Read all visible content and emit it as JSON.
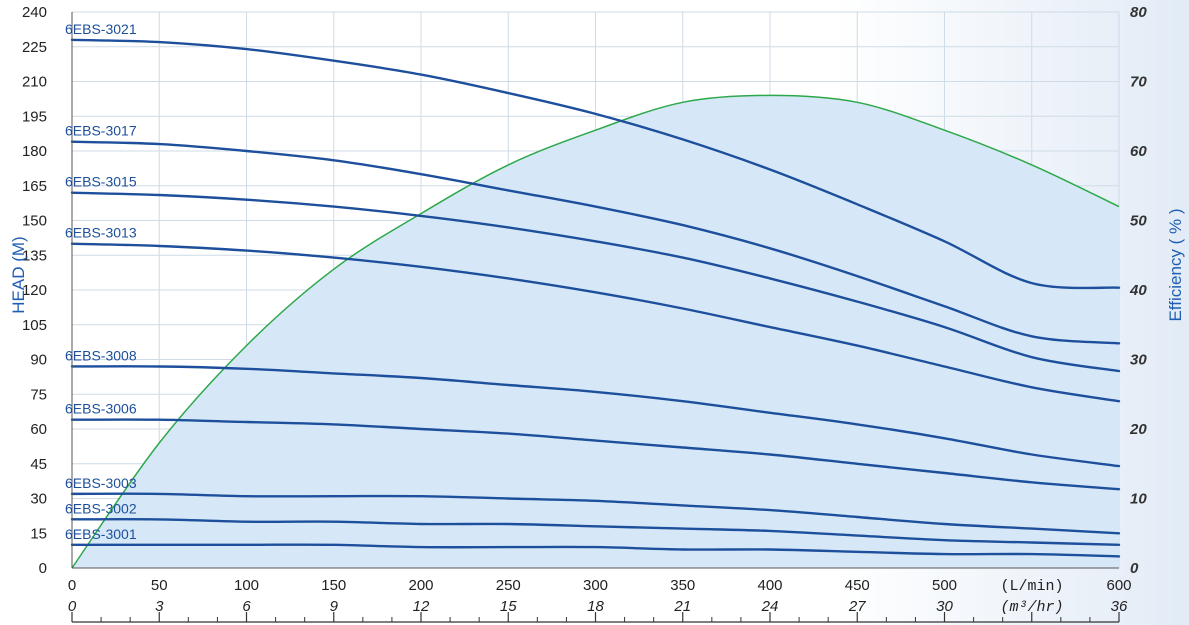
{
  "chart_data": {
    "type": "line",
    "ylabel": "HEAD (M)",
    "y2label": "Efficiency ( % )",
    "x_unit_primary": "(L/min)",
    "x_unit_secondary": "(m³/hr)",
    "xlim": [
      0,
      600
    ],
    "ylim": [
      0,
      240
    ],
    "y2lim": [
      0,
      80
    ],
    "grid": true,
    "x_ticks": [
      "0",
      "50",
      "100",
      "150",
      "200",
      "250",
      "300",
      "350",
      "400",
      "450",
      "500",
      "",
      "600"
    ],
    "x2_ticks": [
      "0",
      "3",
      "6",
      "9",
      "12",
      "15",
      "18",
      "21",
      "24",
      "27",
      "30",
      "",
      "36"
    ],
    "y_ticks": [
      "0",
      "15",
      "30",
      "45",
      "60",
      "75",
      "90",
      "105",
      "120",
      "135",
      "150",
      "165",
      "180",
      "195",
      "210",
      "225",
      "240"
    ],
    "y2_ticks": [
      "0",
      "10",
      "20",
      "30",
      "40",
      "50",
      "60",
      "70",
      "80"
    ],
    "x": [
      0,
      50,
      100,
      150,
      200,
      250,
      300,
      350,
      400,
      450,
      500,
      550,
      600
    ],
    "series": [
      {
        "name": "6EBS-3021",
        "values": [
          228,
          227,
          224,
          219,
          213,
          205,
          196,
          185,
          172,
          157,
          141,
          123,
          121
        ]
      },
      {
        "name": "6EBS-3017",
        "values": [
          184,
          183,
          180,
          176,
          170,
          163,
          156,
          148,
          138,
          126,
          113,
          100,
          97
        ]
      },
      {
        "name": "6EBS-3015",
        "values": [
          162,
          161,
          159,
          156,
          152,
          147,
          141,
          134,
          125,
          115,
          104,
          91,
          85
        ]
      },
      {
        "name": "6EBS-3013",
        "values": [
          140,
          139,
          137,
          134,
          130,
          125,
          119,
          112,
          104,
          96,
          87,
          78,
          72
        ]
      },
      {
        "name": "6EBS-3008",
        "values": [
          87,
          87,
          86,
          84,
          82,
          79,
          76,
          72,
          67,
          62,
          56,
          49,
          44
        ]
      },
      {
        "name": "6EBS-3006",
        "values": [
          64,
          64,
          63,
          62,
          60,
          58,
          55,
          52,
          49,
          45,
          41,
          37,
          34
        ]
      },
      {
        "name": "6EBS-3003",
        "values": [
          32,
          32,
          31,
          31,
          31,
          30,
          29,
          27,
          25,
          22,
          19,
          17,
          15
        ]
      },
      {
        "name": "6EBS-3002",
        "values": [
          21,
          21,
          20,
          20,
          19,
          19,
          18,
          17,
          16,
          14,
          12,
          11,
          10
        ]
      },
      {
        "name": "6EBS-3001",
        "values": [
          10,
          10,
          10,
          10,
          9,
          9,
          9,
          8,
          8,
          7,
          6,
          6,
          5
        ]
      }
    ],
    "efficiency": {
      "x": [
        0,
        50,
        100,
        150,
        200,
        250,
        300,
        350,
        400,
        450,
        500,
        550,
        600
      ],
      "values": [
        0,
        18,
        32,
        43,
        51,
        58,
        63,
        67,
        68,
        67,
        63,
        58,
        52
      ],
      "color": "#2ca84a"
    },
    "colors": {
      "curve": "#1d4f9c",
      "fill": "#d6e8f7",
      "grid": "#cfdbe6",
      "axis_title": "#1f5fb2"
    }
  }
}
